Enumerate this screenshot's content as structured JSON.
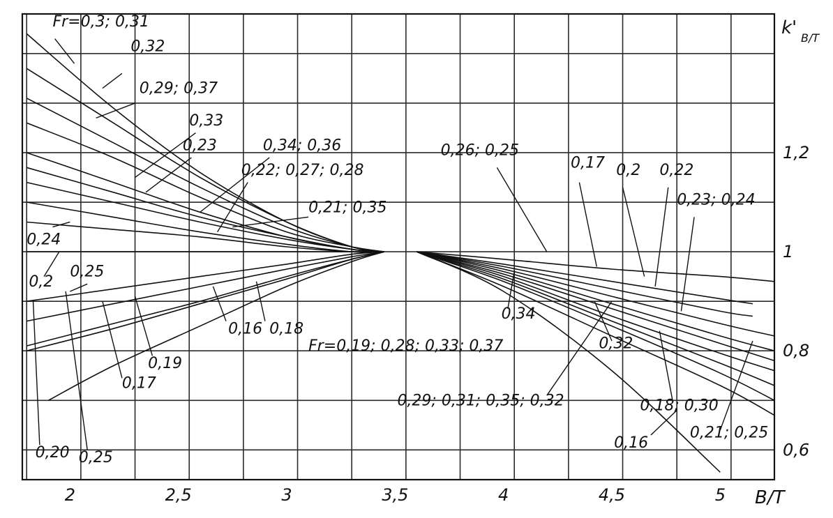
{
  "chart_data": {
    "type": "line",
    "title": "",
    "xlabel": "B/T",
    "ylabel": "k'B/T",
    "ylabel_main": "k'",
    "ylabel_sub": "B/T",
    "xlim": [
      1.78,
      5.25
    ],
    "ylim": [
      0.54,
      1.48
    ],
    "grid": true,
    "x_ticks": [
      {
        "value": 2,
        "label": "2"
      },
      {
        "value": 2.5,
        "label": "2,5"
      },
      {
        "value": 3,
        "label": "3"
      },
      {
        "value": 3.5,
        "label": "3,5"
      },
      {
        "value": 4,
        "label": "4"
      },
      {
        "value": 4.5,
        "label": "4,5"
      },
      {
        "value": 5,
        "label": "5"
      }
    ],
    "y_ticks": [
      {
        "value": 0.6,
        "label": "0,6"
      },
      {
        "value": 0.8,
        "label": "0,8"
      },
      {
        "value": 1.0,
        "label": "1"
      },
      {
        "value": 1.2,
        "label": "1,2"
      }
    ],
    "series": [
      {
        "points": [
          [
            1.8,
            1.44
          ],
          [
            2.2,
            1.29
          ],
          [
            2.6,
            1.16
          ],
          [
            3.0,
            1.06
          ],
          [
            3.3,
            1.01
          ],
          [
            3.45,
            1.0
          ]
        ]
      },
      {
        "points": [
          [
            1.8,
            1.37
          ],
          [
            2.2,
            1.26
          ],
          [
            2.6,
            1.15
          ],
          [
            3.0,
            1.06
          ],
          [
            3.3,
            1.01
          ],
          [
            3.45,
            1.0
          ]
        ]
      },
      {
        "points": [
          [
            1.8,
            1.31
          ],
          [
            2.2,
            1.22
          ],
          [
            2.6,
            1.13
          ],
          [
            3.0,
            1.05
          ],
          [
            3.3,
            1.01
          ],
          [
            3.45,
            1.0
          ]
        ]
      },
      {
        "points": [
          [
            1.8,
            1.26
          ],
          [
            2.2,
            1.19
          ],
          [
            2.6,
            1.11
          ],
          [
            3.0,
            1.04
          ],
          [
            3.3,
            1.01
          ],
          [
            3.45,
            1.0
          ]
        ]
      },
      {
        "points": [
          [
            1.8,
            1.2
          ],
          [
            2.2,
            1.14
          ],
          [
            2.6,
            1.08
          ],
          [
            3.0,
            1.03
          ],
          [
            3.3,
            1.005
          ],
          [
            3.45,
            1.0
          ]
        ]
      },
      {
        "points": [
          [
            1.8,
            1.17
          ],
          [
            2.2,
            1.12
          ],
          [
            2.6,
            1.07
          ],
          [
            3.0,
            1.03
          ],
          [
            3.3,
            1.005
          ],
          [
            3.45,
            1.0
          ]
        ]
      },
      {
        "points": [
          [
            1.8,
            1.14
          ],
          [
            2.2,
            1.1
          ],
          [
            2.6,
            1.06
          ],
          [
            3.0,
            1.025
          ],
          [
            3.3,
            1.005
          ],
          [
            3.45,
            1.0
          ]
        ]
      },
      {
        "points": [
          [
            1.8,
            1.1
          ],
          [
            2.2,
            1.07
          ],
          [
            2.6,
            1.04
          ],
          [
            3.0,
            1.015
          ],
          [
            3.3,
            1.0
          ],
          [
            3.45,
            1.0
          ]
        ]
      },
      {
        "points": [
          [
            1.8,
            1.06
          ],
          [
            2.2,
            1.045
          ],
          [
            2.6,
            1.03
          ],
          [
            3.0,
            1.01
          ],
          [
            3.3,
            1.0
          ],
          [
            3.45,
            1.0
          ]
        ]
      },
      {
        "points": [
          [
            1.8,
            1.0
          ],
          [
            2.6,
            1.0
          ],
          [
            3.45,
            1.0
          ]
        ]
      },
      {
        "points": [
          [
            1.8,
            0.9
          ],
          [
            2.2,
            0.925
          ],
          [
            2.6,
            0.95
          ],
          [
            3.0,
            0.975
          ],
          [
            3.3,
            0.995
          ],
          [
            3.45,
            1.0
          ]
        ]
      },
      {
        "points": [
          [
            1.8,
            0.86
          ],
          [
            2.2,
            0.895
          ],
          [
            2.6,
            0.93
          ],
          [
            3.0,
            0.965
          ],
          [
            3.3,
            0.99
          ],
          [
            3.45,
            1.0
          ]
        ]
      },
      {
        "points": [
          [
            1.8,
            0.81
          ],
          [
            2.2,
            0.855
          ],
          [
            2.6,
            0.9
          ],
          [
            3.0,
            0.95
          ],
          [
            3.3,
            0.985
          ],
          [
            3.45,
            1.0
          ]
        ]
      },
      {
        "points": [
          [
            1.8,
            0.8
          ],
          [
            2.2,
            0.845
          ],
          [
            2.6,
            0.895
          ],
          [
            3.0,
            0.945
          ],
          [
            3.3,
            0.985
          ],
          [
            3.45,
            1.0
          ]
        ]
      },
      {
        "points": [
          [
            1.9,
            0.7
          ],
          [
            2.2,
            0.77
          ],
          [
            2.6,
            0.85
          ],
          [
            3.0,
            0.93
          ],
          [
            3.3,
            0.98
          ],
          [
            3.45,
            1.0
          ]
        ]
      },
      {
        "points": [
          [
            3.6,
            1.0
          ],
          [
            4.0,
            0.985
          ],
          [
            4.5,
            0.965
          ],
          [
            5.0,
            0.95
          ],
          [
            5.25,
            0.94
          ]
        ]
      },
      {
        "points": [
          [
            3.6,
            1.0
          ],
          [
            4.0,
            0.975
          ],
          [
            4.5,
            0.94
          ],
          [
            5.0,
            0.905
          ],
          [
            5.15,
            0.895
          ]
        ]
      },
      {
        "points": [
          [
            3.6,
            1.0
          ],
          [
            4.0,
            0.97
          ],
          [
            4.5,
            0.925
          ],
          [
            5.0,
            0.88
          ],
          [
            5.15,
            0.87
          ]
        ]
      },
      {
        "points": [
          [
            3.6,
            1.0
          ],
          [
            4.0,
            0.965
          ],
          [
            4.5,
            0.91
          ],
          [
            5.0,
            0.855
          ],
          [
            5.25,
            0.83
          ]
        ]
      },
      {
        "points": [
          [
            3.6,
            1.0
          ],
          [
            4.0,
            0.96
          ],
          [
            4.5,
            0.895
          ],
          [
            5.0,
            0.83
          ],
          [
            5.25,
            0.8
          ]
        ]
      },
      {
        "points": [
          [
            3.6,
            1.0
          ],
          [
            4.0,
            0.955
          ],
          [
            4.5,
            0.885
          ],
          [
            5.0,
            0.815
          ],
          [
            5.25,
            0.78
          ]
        ]
      },
      {
        "points": [
          [
            3.6,
            1.0
          ],
          [
            4.0,
            0.95
          ],
          [
            4.5,
            0.87
          ],
          [
            5.0,
            0.795
          ],
          [
            5.25,
            0.76
          ]
        ]
      },
      {
        "points": [
          [
            3.6,
            1.0
          ],
          [
            4.0,
            0.945
          ],
          [
            4.5,
            0.86
          ],
          [
            5.0,
            0.775
          ],
          [
            5.25,
            0.73
          ]
        ]
      },
      {
        "points": [
          [
            3.6,
            1.0
          ],
          [
            4.0,
            0.94
          ],
          [
            4.5,
            0.85
          ],
          [
            5.0,
            0.755
          ],
          [
            5.25,
            0.7
          ]
        ]
      },
      {
        "points": [
          [
            3.6,
            1.0
          ],
          [
            4.0,
            0.93
          ],
          [
            4.5,
            0.83
          ],
          [
            5.0,
            0.73
          ],
          [
            5.25,
            0.67
          ]
        ]
      },
      {
        "points": [
          [
            3.6,
            1.0
          ],
          [
            4.0,
            0.92
          ],
          [
            4.5,
            0.76
          ],
          [
            5.0,
            0.555
          ]
        ]
      }
    ],
    "annotations": [
      {
        "text": "Fr=0,3; 0,31",
        "x": 1.92,
        "y": 1.455
      },
      {
        "text": "0,32",
        "x": 2.28,
        "y": 1.405
      },
      {
        "text": "0,29; 0,37",
        "x": 2.32,
        "y": 1.32
      },
      {
        "text": "0,33",
        "x": 2.55,
        "y": 1.255
      },
      {
        "text": "0,23",
        "x": 2.52,
        "y": 1.205
      },
      {
        "text": "0,34; 0,36",
        "x": 2.89,
        "y": 1.205
      },
      {
        "text": "0,22; 0,27; 0,28",
        "x": 2.79,
        "y": 1.155
      },
      {
        "text": "0,21; 0,35",
        "x": 3.1,
        "y": 1.08
      },
      {
        "text": "0,24",
        "x": 1.8,
        "y": 1.015
      },
      {
        "text": "0,2",
        "x": 1.81,
        "y": 0.93
      },
      {
        "text": "0,25",
        "x": 2.0,
        "y": 0.95
      },
      {
        "text": "0,16",
        "x": 2.73,
        "y": 0.835
      },
      {
        "text": "0,18",
        "x": 2.92,
        "y": 0.835
      },
      {
        "text": "0,17",
        "x": 2.24,
        "y": 0.725
      },
      {
        "text": "0,19",
        "x": 2.36,
        "y": 0.765
      },
      {
        "text": "0,20",
        "x": 1.84,
        "y": 0.585
      },
      {
        "text": "0,25",
        "x": 2.04,
        "y": 0.575
      },
      {
        "text": "0,26; 0,25",
        "x": 3.71,
        "y": 1.195
      },
      {
        "text": "0,17",
        "x": 4.31,
        "y": 1.17
      },
      {
        "text": "0,2",
        "x": 4.52,
        "y": 1.155
      },
      {
        "text": "0,22",
        "x": 4.72,
        "y": 1.155
      },
      {
        "text": "0,23; 0,24",
        "x": 4.8,
        "y": 1.095
      },
      {
        "text": "0,34",
        "x": 3.99,
        "y": 0.865
      },
      {
        "text": "Fr=0,19; 0,28; 0,33; 0,37",
        "x": 3.1,
        "y": 0.8
      },
      {
        "text": "0,32",
        "x": 4.44,
        "y": 0.805
      },
      {
        "text": "0,29; 0,31; 0,35; 0,32",
        "x": 3.51,
        "y": 0.69
      },
      {
        "text": "0,18; 0,30",
        "x": 4.63,
        "y": 0.68
      },
      {
        "text": "0,16",
        "x": 4.51,
        "y": 0.605
      },
      {
        "text": "0,21; 0,25",
        "x": 4.86,
        "y": 0.625
      }
    ]
  }
}
